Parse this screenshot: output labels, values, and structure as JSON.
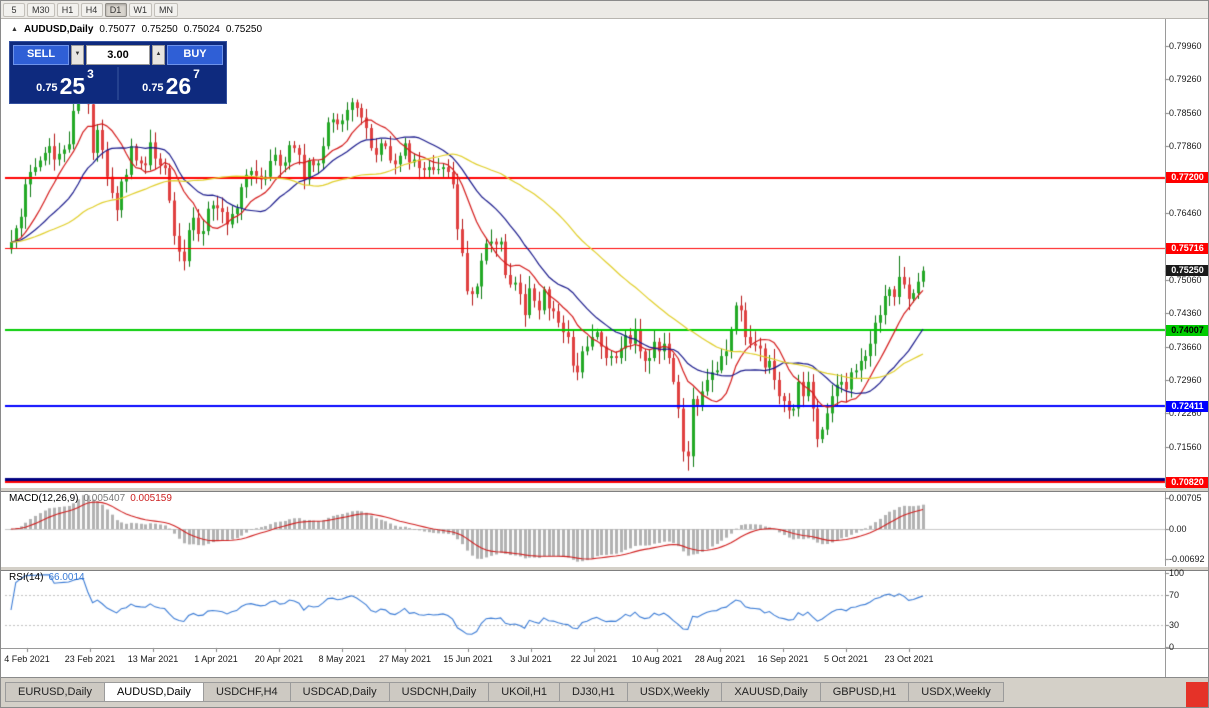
{
  "icons": {
    "collapse": "▲",
    "spin_down": "▼",
    "spin_up": "▲"
  },
  "toolbar": {
    "timeframes": [
      "5",
      "M30",
      "H1",
      "H4",
      "D1",
      "W1",
      "MN"
    ],
    "active": "D1"
  },
  "chart": {
    "title": {
      "symbol": "AUDUSD,Daily",
      "open": "0.75077",
      "high": "0.75250",
      "low": "0.75024",
      "close": "0.75250"
    },
    "trade_panel": {
      "sell_label": "SELL",
      "buy_label": "BUY",
      "lot_value": "3.00",
      "sell_price": {
        "prefix": "0.75",
        "big": "25",
        "sup": "3"
      },
      "buy_price": {
        "prefix": "0.75",
        "big": "26",
        "sup": "7"
      }
    },
    "levels": [
      {
        "price": 0.772,
        "color": "#ff0000",
        "width": 2
      },
      {
        "price": 0.75716,
        "color": "#ff0000",
        "width": 1
      },
      {
        "price": 0.74007,
        "color": "#00cc00",
        "width": 2
      },
      {
        "price": 0.72411,
        "color": "#0000ff",
        "width": 2
      },
      {
        "price": 0.7088,
        "color": "#000080",
        "width": 3
      },
      {
        "price": 0.7082,
        "color": "#ff0000",
        "width": 2
      }
    ],
    "price_axis": {
      "ticks": [
        "0.79960",
        "0.79260",
        "0.78560",
        "0.77860",
        "0.76460",
        "0.75060",
        "0.74360",
        "0.73660",
        "0.72960",
        "0.72260",
        "0.71560"
      ],
      "badges": [
        {
          "label": "0.77200",
          "price": 0.772,
          "bg": "#ff0000",
          "fg": "#ffffff"
        },
        {
          "label": "0.75716",
          "price": 0.75716,
          "bg": "#ff0000",
          "fg": "#ffffff"
        },
        {
          "label": "0.75250",
          "price": 0.7525,
          "bg": "#1a1a1a",
          "fg": "#ffffff"
        },
        {
          "label": "0.74007",
          "price": 0.74007,
          "bg": "#00cc00",
          "fg": "#000000"
        },
        {
          "label": "0.72411",
          "price": 0.72411,
          "bg": "#0000ff",
          "fg": "#ffffff"
        },
        {
          "label": "0.70820",
          "price": 0.7082,
          "bg": "#ff0000",
          "fg": "#ffffff"
        }
      ]
    },
    "date_axis": [
      "4 Feb 2021",
      "23 Feb 2021",
      "13 Mar 2021",
      "1 Apr 2021",
      "20 Apr 2021",
      "8 May 2021",
      "27 May 2021",
      "15 Jun 2021",
      "3 Jul 2021",
      "22 Jul 2021",
      "10 Aug 2021",
      "28 Aug 2021",
      "16 Sep 2021",
      "5 Oct 2021",
      "23 Oct 2021"
    ]
  },
  "indicators": {
    "macd": {
      "name": "MACD(12,26,9)",
      "value_main": "0.005407",
      "value_signal": "0.005159",
      "ticks": [
        "0.00705",
        "0.00",
        "-0.00692"
      ]
    },
    "rsi": {
      "name": "RSI(14)",
      "value": "66.0014",
      "ticks": [
        "100",
        "70",
        "30",
        "0"
      ],
      "levels": [
        70,
        30
      ]
    }
  },
  "tabs": {
    "items": [
      "EURUSD,Daily",
      "AUDUSD,Daily",
      "USDCHF,H4",
      "USDCAD,Daily",
      "USDCNH,Daily",
      "UKOil,H1",
      "DJ30,H1",
      "USDX,Weekly",
      "XAUUSD,Daily",
      "GBPUSD,H1",
      "USDX,Weekly"
    ],
    "active_index": 1
  },
  "chart_data": {
    "type": "candlestick",
    "symbol": "AUDUSD",
    "timeframe": "Daily",
    "ylim": [
      0.706,
      0.8055
    ],
    "last_candle": {
      "open": 0.75077,
      "high": 0.7525,
      "low": 0.75024,
      "close": 0.7525
    },
    "first_open": 0.757,
    "closes": [
      0.7585,
      0.7614,
      0.7638,
      0.7706,
      0.7732,
      0.7742,
      0.7756,
      0.7772,
      0.7786,
      0.7758,
      0.777,
      0.7779,
      0.779,
      0.786,
      0.7922,
      0.7964,
      0.7874,
      0.7772,
      0.782,
      0.7778,
      0.7722,
      0.7688,
      0.7652,
      0.7712,
      0.7726,
      0.7786,
      0.7756,
      0.775,
      0.7746,
      0.7794,
      0.776,
      0.7746,
      0.774,
      0.7672,
      0.7598,
      0.7565,
      0.7545,
      0.761,
      0.7636,
      0.7602,
      0.7608,
      0.7655,
      0.7662,
      0.7656,
      0.7648,
      0.7622,
      0.7644,
      0.7656,
      0.77,
      0.7726,
      0.7734,
      0.7724,
      0.7716,
      0.7722,
      0.7755,
      0.7768,
      0.7745,
      0.7752,
      0.7788,
      0.7782,
      0.7768,
      0.7716,
      0.7756,
      0.7746,
      0.775,
      0.7786,
      0.7836,
      0.7842,
      0.7832,
      0.784,
      0.7862,
      0.7878,
      0.7866,
      0.7846,
      0.7824,
      0.7782,
      0.7768,
      0.7792,
      0.7786,
      0.7756,
      0.7748,
      0.7766,
      0.7792,
      0.7752,
      0.7758,
      0.774,
      0.7736,
      0.7742,
      0.7736,
      0.7738,
      0.7742,
      0.7732,
      0.7706,
      0.7612,
      0.7562,
      0.7482,
      0.7476,
      0.7492,
      0.7546,
      0.7582,
      0.7586,
      0.758,
      0.7586,
      0.7516,
      0.7496,
      0.75,
      0.7476,
      0.7432,
      0.7488,
      0.7462,
      0.7442,
      0.7486,
      0.7446,
      0.744,
      0.7416,
      0.7396,
      0.7386,
      0.7326,
      0.7312,
      0.7356,
      0.7366,
      0.7386,
      0.7396,
      0.7366,
      0.7342,
      0.7346,
      0.7342,
      0.7362,
      0.739,
      0.7372,
      0.7402,
      0.7356,
      0.7336,
      0.7342,
      0.7376,
      0.7356,
      0.7372,
      0.7342,
      0.7292,
      0.7236,
      0.7146,
      0.7136,
      0.7256,
      0.7242,
      0.7272,
      0.7296,
      0.7312,
      0.7316,
      0.7346,
      0.7356,
      0.7402,
      0.7452,
      0.7442,
      0.7386,
      0.7372,
      0.7368,
      0.7362,
      0.7322,
      0.7336,
      0.7296,
      0.7262,
      0.7252,
      0.7232,
      0.7236,
      0.7292,
      0.7262,
      0.7292,
      0.7236,
      0.7172,
      0.7192,
      0.7226,
      0.7262,
      0.7286,
      0.7292,
      0.7276,
      0.7312,
      0.7316,
      0.7336,
      0.7346,
      0.7372,
      0.7416,
      0.7432,
      0.7472,
      0.7486,
      0.747,
      0.7512,
      0.7496,
      0.7466,
      0.7478,
      0.7502,
      0.7525
    ],
    "key_extremes": [
      {
        "index": 15,
        "high": 0.7996
      },
      {
        "index": 141,
        "low": 0.7106
      },
      {
        "index": 185,
        "high": 0.7556
      }
    ],
    "moving_averages": [
      {
        "type": "sma",
        "period": 10,
        "color": "#d41b1b"
      },
      {
        "type": "sma",
        "period": 20,
        "color": "#1a1a8c"
      },
      {
        "type": "sma",
        "period": 45,
        "color": "#e0ce2a"
      }
    ],
    "candle_colors": {
      "up": "#23a926",
      "up_dark": "#0c7a10",
      "down": "#e04040",
      "down_dark": "#b51717"
    },
    "macd_params": [
      12,
      26,
      9
    ],
    "macd_colors": {
      "histogram": "#b2b2b2",
      "signal": "#d02020"
    },
    "rsi_period": 14,
    "rsi_color": "#3a7bd5"
  }
}
